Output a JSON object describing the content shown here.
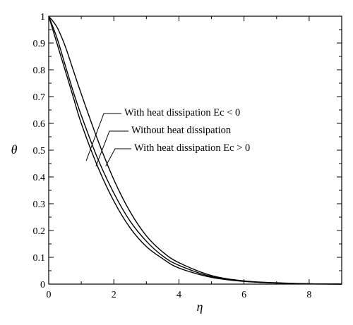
{
  "chart_data": {
    "type": "line",
    "title": "",
    "xlabel": "η",
    "ylabel": "θ",
    "xlim": [
      0,
      9
    ],
    "ylim": [
      0,
      1
    ],
    "xticks": [
      "0",
      "2",
      "4",
      "6",
      "8"
    ],
    "yticks": [
      "0",
      "0.1",
      "0.2",
      "0.3",
      "0.4",
      "0.5",
      "0.6",
      "0.7",
      "0.8",
      "0.9",
      "1"
    ],
    "grid": false,
    "series": [
      {
        "name": "With heat dissipation Ec < 0",
        "x": [
          0,
          0.25,
          0.5,
          0.75,
          1,
          1.5,
          2,
          2.5,
          3,
          3.5,
          4,
          5,
          6,
          7,
          8,
          9
        ],
        "values": [
          1.0,
          0.9,
          0.8,
          0.7,
          0.6,
          0.44,
          0.31,
          0.21,
          0.14,
          0.095,
          0.06,
          0.025,
          0.01,
          0.004,
          0.001,
          0.0
        ]
      },
      {
        "name": "Without heat dissipation",
        "x": [
          0,
          0.25,
          0.5,
          0.75,
          1,
          1.5,
          2,
          2.5,
          3,
          3.5,
          4,
          5,
          6,
          7,
          8,
          9
        ],
        "values": [
          1.0,
          0.92,
          0.82,
          0.72,
          0.63,
          0.47,
          0.34,
          0.235,
          0.16,
          0.105,
          0.07,
          0.028,
          0.011,
          0.004,
          0.001,
          0.0
        ]
      },
      {
        "name": "With heat dissipation Ec > 0",
        "x": [
          0,
          0.25,
          0.5,
          0.75,
          1,
          1.5,
          2,
          2.5,
          3,
          3.5,
          4,
          5,
          6,
          7,
          8,
          9
        ],
        "values": [
          1.0,
          0.96,
          0.89,
          0.8,
          0.71,
          0.54,
          0.39,
          0.27,
          0.18,
          0.12,
          0.08,
          0.032,
          0.012,
          0.005,
          0.001,
          0.0
        ]
      }
    ]
  }
}
